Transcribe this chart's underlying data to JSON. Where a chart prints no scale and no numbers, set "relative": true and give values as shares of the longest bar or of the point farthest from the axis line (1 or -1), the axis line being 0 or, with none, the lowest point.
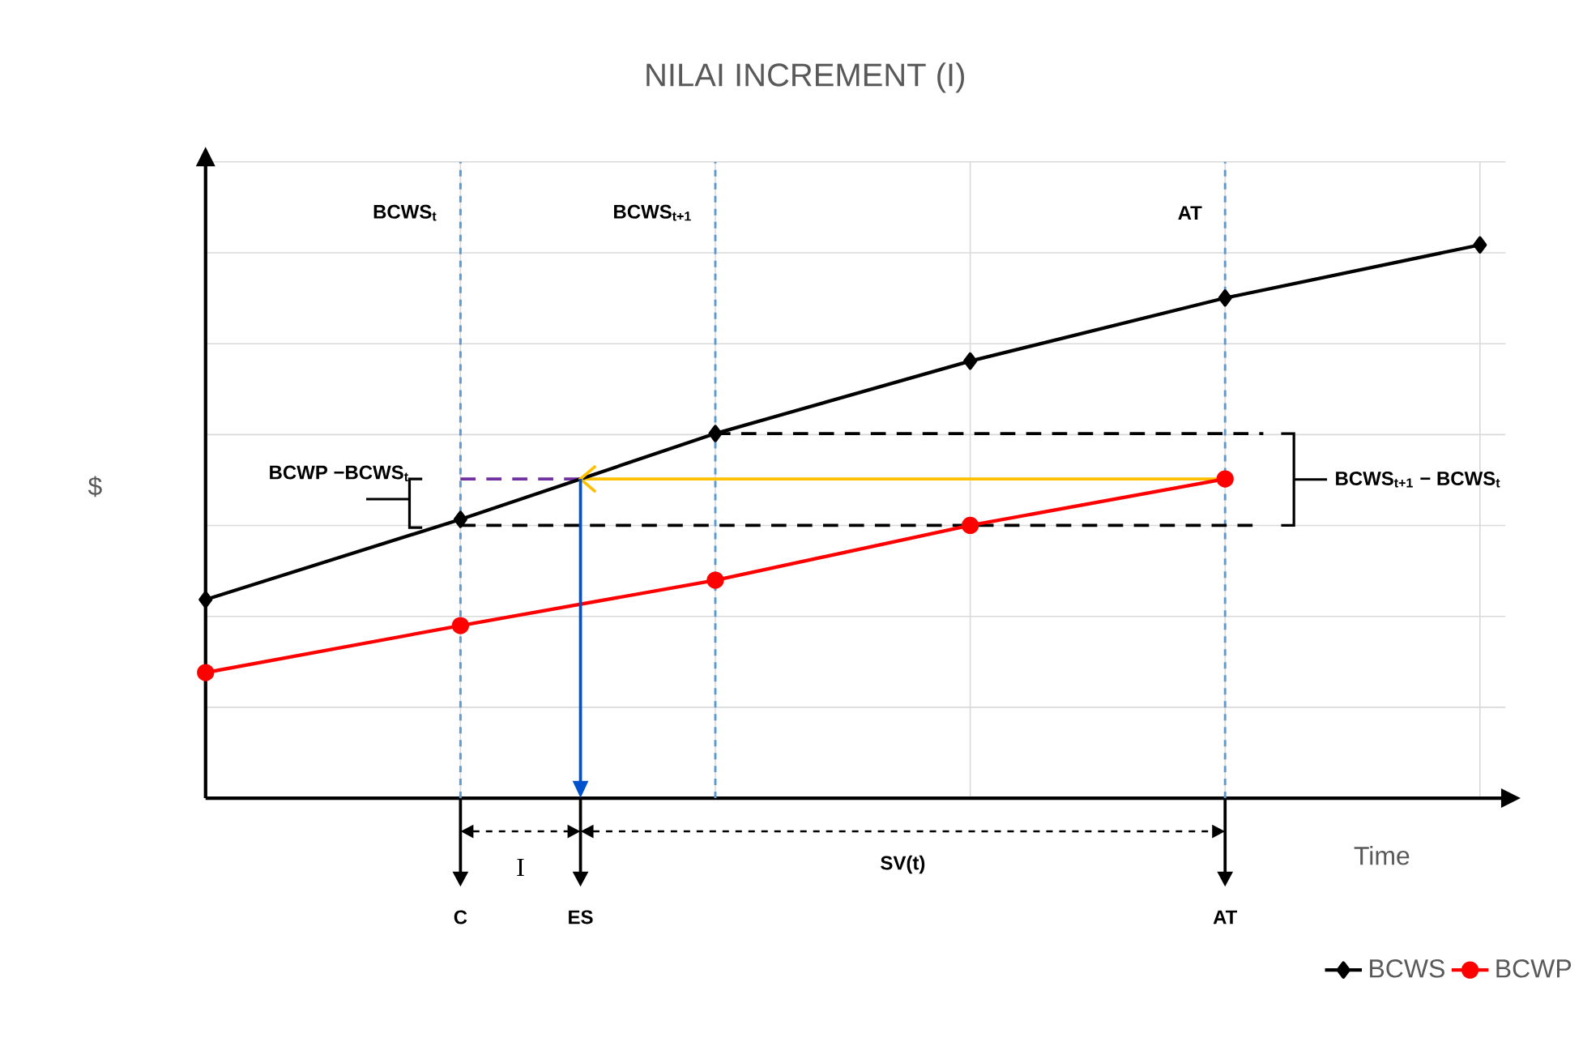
{
  "chart_data": {
    "type": "line",
    "title": "NILAI INCREMENT (I)",
    "xlabel": "Time",
    "ylabel": "$",
    "relative": true,
    "categories": [
      null,
      null,
      null,
      null,
      null,
      null
    ],
    "grid": true,
    "legend": "bottom right",
    "line_style": "solid",
    "series": [
      {
        "name": "BCWS",
        "color": "#000000",
        "marker": "diamond",
        "values": [
          0.359,
          0.504,
          0.659,
          0.79,
          0.904,
          1.0
        ]
      },
      {
        "name": "BCWP",
        "color": "#ff0000",
        "marker": "circle",
        "values": [
          0.227,
          0.312,
          0.394,
          0.493,
          0.577,
          null
        ]
      }
    ],
    "ref_lines": [
      {
        "axis": "y",
        "value": 0.577,
        "color": "#7030a0",
        "line_style": "dashed"
      },
      {
        "axis": "y",
        "value": 0.577,
        "color": "#ffc000",
        "line_style": "solid"
      },
      {
        "axis": "y",
        "value": 0.659,
        "color": "#000000",
        "line_style": "dashed"
      },
      {
        "axis": "y",
        "value": 0.493,
        "color": "#000000",
        "line_style": "dashed"
      }
    ],
    "annotations": [
      "BCWP −BCWS$_{t}$",
      "BCWS$_{t+1}$ − BCWS$_{t}$",
      "I",
      "SV(t)",
      "C",
      "ES",
      "AT",
      "BCWS$_{t}$",
      "BCWS$_{t+1}$",
      "AT"
    ]
  }
}
